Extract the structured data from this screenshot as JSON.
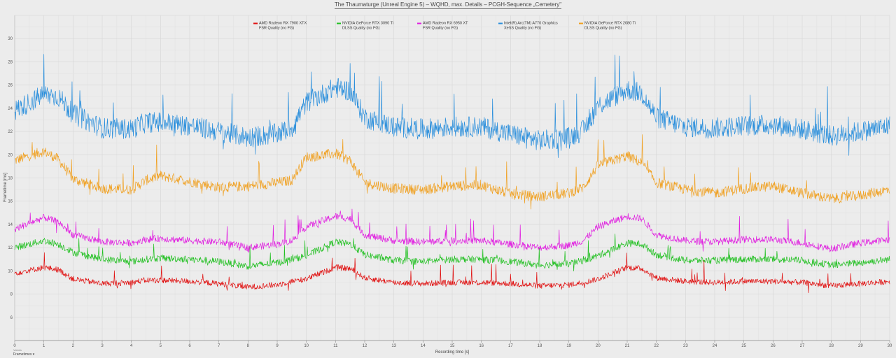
{
  "chart_data": {
    "type": "line",
    "title": "The Thaumaturge (Unreal Engine 5) – WQHD, max. Details – PCGH-Sequence „Cemetery\"",
    "xlabel": "Recording time [s]",
    "ylabel": "Frametime [ms]",
    "xlim": [
      0,
      30
    ],
    "ylim": [
      4,
      32
    ],
    "xticks": [
      0,
      1,
      2,
      3,
      4,
      5,
      6,
      7,
      8,
      9,
      10,
      11,
      12,
      13,
      14,
      15,
      16,
      17,
      18,
      19,
      20,
      21,
      22,
      23,
      24,
      25,
      26,
      27,
      28,
      29,
      30
    ],
    "yticks": [
      6,
      8,
      10,
      12,
      14,
      16,
      18,
      20,
      22,
      24,
      26,
      28,
      30
    ],
    "grid": true,
    "legend_position": "top-center",
    "x_keypoints": [
      0,
      1,
      1.5,
      2,
      3,
      4,
      4.5,
      5,
      6,
      7,
      8,
      9,
      9.5,
      10,
      11,
      11.5,
      12,
      13,
      14,
      15,
      16,
      17,
      18,
      19,
      19.5,
      20,
      21,
      21.5,
      22,
      23,
      24,
      25,
      26,
      27,
      28,
      29,
      30
    ],
    "series": [
      {
        "name_line1": "AMD Radeon RX 7900 XTX",
        "name_line2": "FSR Quality (no FG)",
        "color": "#e01010",
        "noise": 0.25,
        "spike": 1.2,
        "values": [
          9.8,
          10.3,
          10.1,
          9.3,
          8.9,
          9.0,
          9.2,
          9.2,
          9.1,
          8.9,
          8.6,
          8.8,
          9.1,
          9.3,
          10.3,
          10.2,
          9.4,
          9.0,
          8.9,
          9.0,
          9.0,
          8.9,
          8.7,
          8.8,
          9.0,
          9.3,
          10.3,
          10.2,
          9.4,
          9.1,
          9.0,
          9.1,
          9.1,
          9.0,
          8.7,
          8.9,
          9.1
        ]
      },
      {
        "name_line1": "NVIDIA GeForce RTX 3090 Ti",
        "name_line2": "DLSS Quality (no FG)",
        "color": "#22c022",
        "noise": 0.3,
        "spike": 1.0,
        "values": [
          12.0,
          12.6,
          12.3,
          11.6,
          11.0,
          10.8,
          11.0,
          11.1,
          11.0,
          10.8,
          10.4,
          10.7,
          11.0,
          11.3,
          12.5,
          12.3,
          11.4,
          10.9,
          10.8,
          11.0,
          11.0,
          10.8,
          10.5,
          10.6,
          10.9,
          11.3,
          12.4,
          12.3,
          11.4,
          10.9,
          10.9,
          11.0,
          11.0,
          10.9,
          10.5,
          10.7,
          11.0
        ]
      },
      {
        "name_line1": "AMD Radeon RX 6950 XT",
        "name_line2": "FSR Quality (no FG)",
        "color": "#e020e0",
        "noise": 0.3,
        "spike": 1.4,
        "values": [
          13.6,
          14.6,
          14.2,
          13.1,
          12.5,
          12.4,
          12.7,
          12.8,
          12.6,
          12.5,
          12.0,
          12.3,
          12.6,
          13.8,
          14.7,
          14.5,
          13.1,
          12.6,
          12.5,
          12.6,
          12.6,
          12.3,
          12.0,
          12.2,
          12.6,
          13.8,
          14.7,
          14.5,
          13.1,
          12.6,
          12.5,
          12.7,
          12.7,
          12.4,
          11.9,
          12.4,
          12.7
        ]
      },
      {
        "name_line1": "Intel(R) Arc(TM) A770 Graphics",
        "name_line2": "XeSS Quality (no FG)",
        "color": "#2b8fdc",
        "noise": 0.9,
        "spike": 2.5,
        "values": [
          23.8,
          25.2,
          25.0,
          23.5,
          22.3,
          22.2,
          22.8,
          22.8,
          22.5,
          22.0,
          21.5,
          21.8,
          22.3,
          24.5,
          25.8,
          25.5,
          23.2,
          22.4,
          22.2,
          22.4,
          22.4,
          21.8,
          21.2,
          21.5,
          22.1,
          24.2,
          25.6,
          25.3,
          23.2,
          22.4,
          22.3,
          22.5,
          22.6,
          22.2,
          21.6,
          22.0,
          22.5
        ]
      },
      {
        "name_line1": "NVIDIA GeForce RTX 2080 Ti",
        "name_line2": "DLSS Quality (no FG)",
        "color": "#f0a020",
        "noise": 0.45,
        "spike": 1.8,
        "values": [
          19.5,
          20.3,
          19.6,
          17.9,
          17.1,
          17.0,
          17.8,
          18.2,
          17.7,
          17.2,
          17.3,
          17.6,
          17.8,
          19.8,
          20.1,
          19.5,
          17.6,
          17.1,
          17.0,
          17.3,
          17.4,
          16.6,
          16.4,
          16.7,
          17.2,
          19.1,
          19.9,
          19.3,
          17.6,
          17.0,
          16.7,
          17.1,
          17.3,
          16.7,
          16.2,
          16.5,
          17.0
        ]
      }
    ]
  },
  "footer": {
    "small_label": "Values",
    "select_label": "Frametimes",
    "select_caret": "▾"
  }
}
